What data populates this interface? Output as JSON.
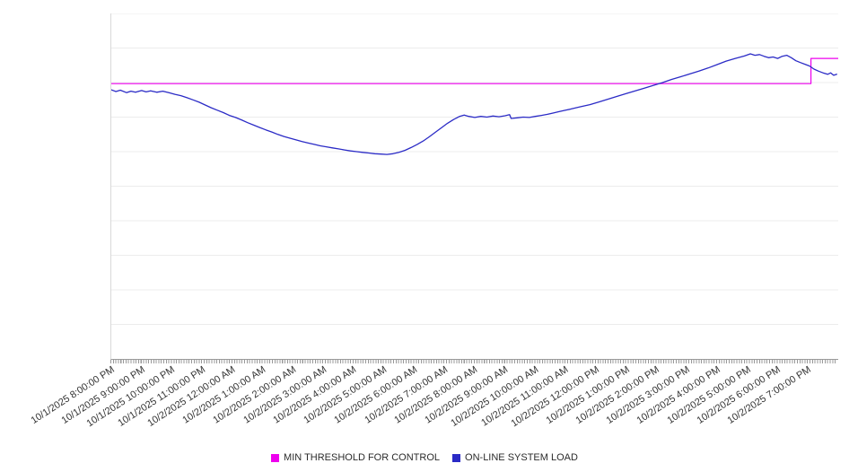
{
  "page": {
    "background": "#ffffff"
  },
  "chart_data": {
    "type": "line",
    "title": "",
    "legend_position": "bottom",
    "x_range_hours": [
      0,
      24
    ],
    "x_axis": {
      "labels": [
        "10/1/2025 8:00:00 PM",
        "10/1/2025 9:00:00 PM",
        "10/1/2025 10:00:00 PM",
        "10/1/2025 11:00:00 PM",
        "10/2/2025 12:00:00 AM",
        "10/2/2025 1:00:00 AM",
        "10/2/2025 2:00:00 AM",
        "10/2/2025 3:00:00 AM",
        "10/2/2025 4:00:00 AM",
        "10/2/2025 5:00:00 AM",
        "10/2/2025 6:00:00 AM",
        "10/2/2025 7:00:00 AM",
        "10/2/2025 8:00:00 AM",
        "10/2/2025 9:00:00 AM",
        "10/2/2025 10:00:00 AM",
        "10/2/2025 11:00:00 AM",
        "10/2/2025 12:00:00 PM",
        "10/2/2025 1:00:00 PM",
        "10/2/2025 2:00:00 PM",
        "10/2/2025 3:00:00 PM",
        "10/2/2025 4:00:00 PM",
        "10/2/2025 5:00:00 PM",
        "10/2/2025 6:00:00 PM",
        "10/2/2025 7:00:00 PM"
      ],
      "minor_ticks_per_hour": 12
    },
    "y_axis": {
      "min": 0,
      "max": 100,
      "grid_step": 10,
      "tick_labels_visible": false
    },
    "grid_color": "#ececec",
    "axis_color": "#999999",
    "label_color": "#333333",
    "series": [
      {
        "name": "MIN THRESHOLD FOR CONTROL",
        "color": "#ee00ee",
        "stroke_width": 1.2,
        "points": [
          [
            0,
            79.7
          ],
          [
            23.1,
            79.7
          ],
          [
            23.1,
            87.0
          ],
          [
            24,
            87.0
          ]
        ]
      },
      {
        "name": "ON-LINE SYSTEM LOAD",
        "color": "#2b2bc6",
        "stroke_width": 1.3,
        "points": [
          [
            0,
            77.9
          ],
          [
            0.15,
            77.4
          ],
          [
            0.3,
            77.8
          ],
          [
            0.5,
            77.1
          ],
          [
            0.65,
            77.5
          ],
          [
            0.8,
            77.2
          ],
          [
            1.0,
            77.7
          ],
          [
            1.15,
            77.3
          ],
          [
            1.3,
            77.6
          ],
          [
            1.5,
            77.2
          ],
          [
            1.7,
            77.5
          ],
          [
            1.9,
            77.1
          ],
          [
            2.1,
            76.6
          ],
          [
            2.3,
            76.2
          ],
          [
            2.5,
            75.6
          ],
          [
            2.7,
            75.0
          ],
          [
            2.9,
            74.3
          ],
          [
            3.1,
            73.5
          ],
          [
            3.3,
            72.7
          ],
          [
            3.5,
            72.0
          ],
          [
            3.7,
            71.3
          ],
          [
            3.9,
            70.5
          ],
          [
            4.1,
            69.9
          ],
          [
            4.3,
            69.2
          ],
          [
            4.5,
            68.4
          ],
          [
            4.7,
            67.7
          ],
          [
            4.9,
            67.0
          ],
          [
            5.1,
            66.3
          ],
          [
            5.3,
            65.7
          ],
          [
            5.5,
            65.0
          ],
          [
            5.7,
            64.4
          ],
          [
            5.9,
            63.9
          ],
          [
            6.1,
            63.4
          ],
          [
            6.3,
            62.9
          ],
          [
            6.5,
            62.5
          ],
          [
            6.7,
            62.1
          ],
          [
            6.9,
            61.7
          ],
          [
            7.1,
            61.4
          ],
          [
            7.3,
            61.1
          ],
          [
            7.5,
            60.8
          ],
          [
            7.7,
            60.5
          ],
          [
            7.9,
            60.2
          ],
          [
            8.1,
            60.0
          ],
          [
            8.3,
            59.8
          ],
          [
            8.5,
            59.6
          ],
          [
            8.7,
            59.4
          ],
          [
            8.9,
            59.3
          ],
          [
            9.1,
            59.2
          ],
          [
            9.3,
            59.4
          ],
          [
            9.5,
            59.8
          ],
          [
            9.7,
            60.4
          ],
          [
            9.9,
            61.2
          ],
          [
            10.1,
            62.1
          ],
          [
            10.3,
            63.1
          ],
          [
            10.5,
            64.3
          ],
          [
            10.7,
            65.6
          ],
          [
            10.9,
            66.9
          ],
          [
            11.1,
            68.2
          ],
          [
            11.3,
            69.3
          ],
          [
            11.5,
            70.2
          ],
          [
            11.65,
            70.6
          ],
          [
            11.8,
            70.2
          ],
          [
            12.0,
            69.9
          ],
          [
            12.2,
            70.2
          ],
          [
            12.4,
            70.0
          ],
          [
            12.6,
            70.3
          ],
          [
            12.8,
            70.1
          ],
          [
            13.0,
            70.4
          ],
          [
            13.15,
            70.7
          ],
          [
            13.2,
            69.6
          ],
          [
            13.4,
            69.8
          ],
          [
            13.6,
            70.0
          ],
          [
            13.8,
            69.9
          ],
          [
            14.0,
            70.2
          ],
          [
            14.2,
            70.5
          ],
          [
            14.4,
            70.8
          ],
          [
            14.6,
            71.2
          ],
          [
            14.8,
            71.6
          ],
          [
            15.0,
            72.0
          ],
          [
            15.2,
            72.4
          ],
          [
            15.5,
            73.0
          ],
          [
            15.8,
            73.6
          ],
          [
            16.1,
            74.4
          ],
          [
            16.4,
            75.2
          ],
          [
            16.7,
            76.0
          ],
          [
            17.0,
            76.8
          ],
          [
            17.3,
            77.6
          ],
          [
            17.6,
            78.4
          ],
          [
            17.9,
            79.2
          ],
          [
            18.2,
            80.0
          ],
          [
            18.5,
            80.9
          ],
          [
            18.8,
            81.7
          ],
          [
            19.1,
            82.5
          ],
          [
            19.4,
            83.3
          ],
          [
            19.7,
            84.2
          ],
          [
            20.0,
            85.2
          ],
          [
            20.3,
            86.2
          ],
          [
            20.6,
            87.0
          ],
          [
            20.9,
            87.7
          ],
          [
            21.1,
            88.3
          ],
          [
            21.25,
            87.9
          ],
          [
            21.4,
            88.1
          ],
          [
            21.55,
            87.6
          ],
          [
            21.7,
            87.2
          ],
          [
            21.85,
            87.4
          ],
          [
            22.0,
            87.0
          ],
          [
            22.15,
            87.6
          ],
          [
            22.3,
            87.9
          ],
          [
            22.45,
            87.2
          ],
          [
            22.6,
            86.3
          ],
          [
            22.75,
            85.8
          ],
          [
            22.9,
            85.3
          ],
          [
            23.05,
            84.8
          ],
          [
            23.2,
            83.9
          ],
          [
            23.35,
            83.3
          ],
          [
            23.5,
            82.8
          ],
          [
            23.65,
            82.4
          ],
          [
            23.75,
            82.8
          ],
          [
            23.85,
            82.1
          ],
          [
            23.95,
            82.4
          ]
        ]
      }
    ]
  }
}
